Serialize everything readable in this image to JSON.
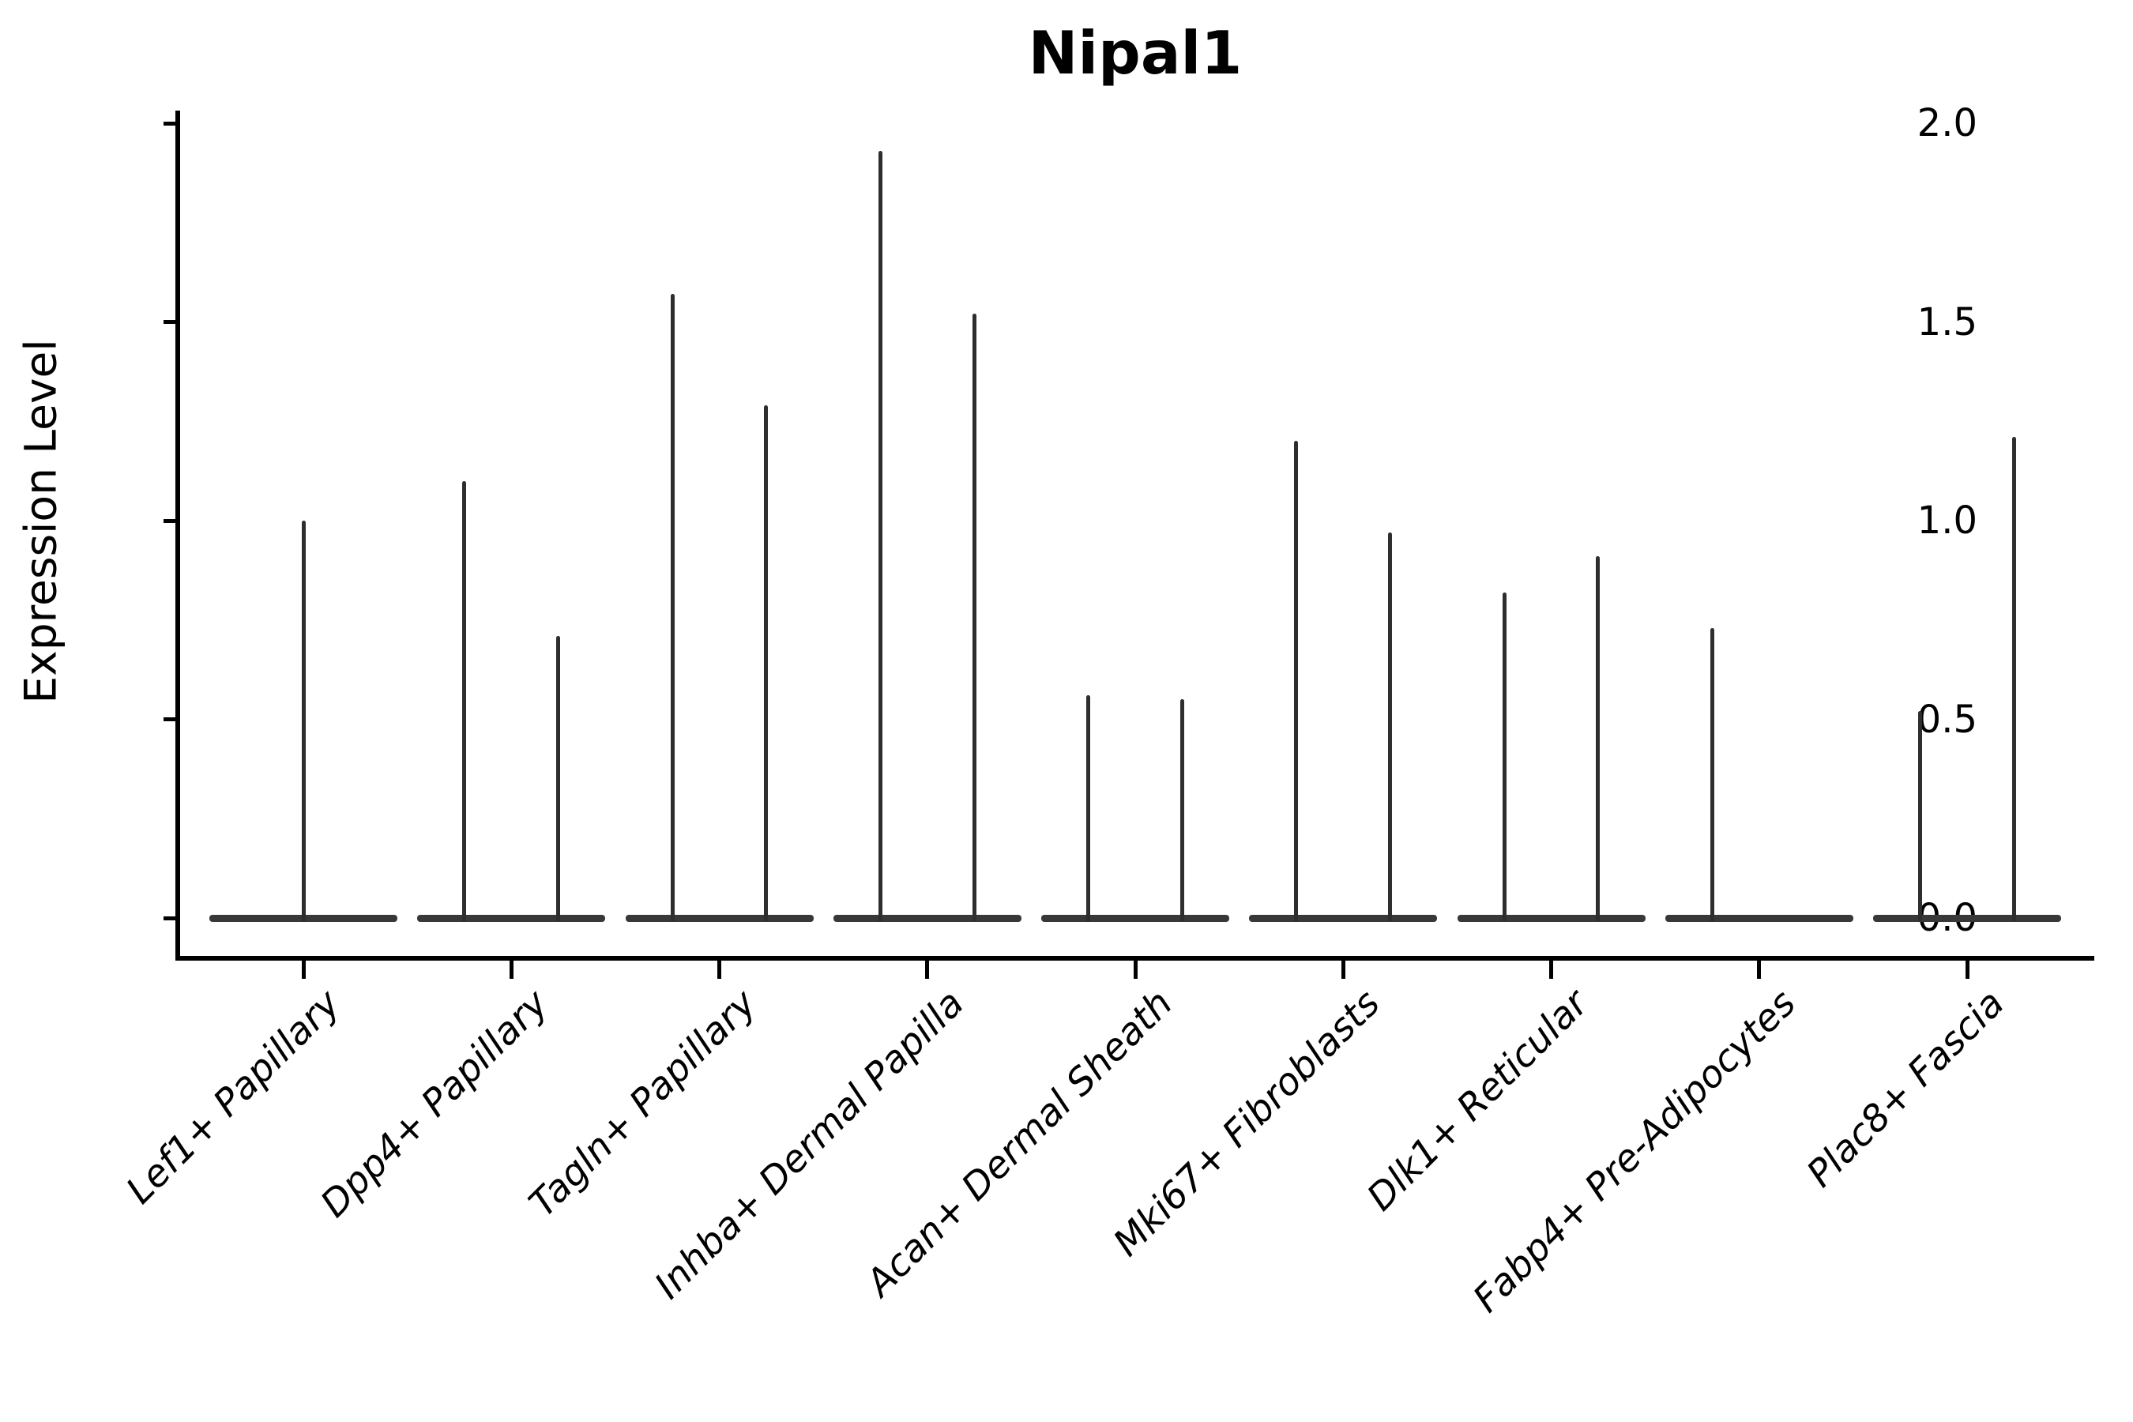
{
  "chart_data": {
    "type": "violin",
    "title": "Nipal1",
    "ylabel": "Expression Level",
    "xlabel": "",
    "ylim": [
      0,
      2.0
    ],
    "yticks": [
      2.0,
      1.5,
      1.0,
      0.5,
      0.0
    ],
    "grid": false,
    "legend": null,
    "style": "sparse single-cell expression violins: wide dark baseline at 0 with thin vertical density spikes up to the max expression value; two side-by-side violins per category unless only one shown",
    "colors": {
      "violin_line": "#2e2e2e",
      "baseline": "#383838",
      "axis": "#000000",
      "text": "#000000",
      "background": "#ffffff"
    },
    "categories": [
      "Lef1+ Papillary",
      "Dpp4+ Papillary",
      "Tagln+ Papillary",
      "Inhba+ Dermal Papilla",
      "Acan+ Dermal Sheath",
      "Mki67+ Fibroblasts",
      "Dlk1+ Reticular",
      "Fabp4+ Pre-Adipocytes",
      "Plac8+ Fascia"
    ],
    "violins": [
      {
        "category": "Lef1+ Papillary",
        "spikes": [
          {
            "slot": "center",
            "max_expression": 1.0
          }
        ]
      },
      {
        "category": "Dpp4+ Papillary",
        "spikes": [
          {
            "slot": "left",
            "max_expression": 1.1
          },
          {
            "slot": "right",
            "max_expression": 0.71
          }
        ]
      },
      {
        "category": "Tagln+ Papillary",
        "spikes": [
          {
            "slot": "left",
            "max_expression": 1.57
          },
          {
            "slot": "right",
            "max_expression": 1.29
          }
        ]
      },
      {
        "category": "Inhba+ Dermal Papilla",
        "spikes": [
          {
            "slot": "left",
            "max_expression": 1.93
          },
          {
            "slot": "right",
            "max_expression": 1.52
          }
        ]
      },
      {
        "category": "Acan+ Dermal Sheath",
        "spikes": [
          {
            "slot": "left",
            "max_expression": 0.56
          },
          {
            "slot": "right",
            "max_expression": 0.55
          }
        ]
      },
      {
        "category": "Mki67+ Fibroblasts",
        "spikes": [
          {
            "slot": "left",
            "max_expression": 1.2
          },
          {
            "slot": "right",
            "max_expression": 0.97
          }
        ]
      },
      {
        "category": "Dlk1+ Reticular",
        "spikes": [
          {
            "slot": "left",
            "max_expression": 0.82
          },
          {
            "slot": "right",
            "max_expression": 0.91
          }
        ]
      },
      {
        "category": "Fabp4+ Pre-Adipocytes",
        "spikes": [
          {
            "slot": "left",
            "max_expression": 0.73
          }
        ]
      },
      {
        "category": "Plac8+ Fascia",
        "spikes": [
          {
            "slot": "left",
            "max_expression": 0.52
          },
          {
            "slot": "right",
            "max_expression": 1.21
          }
        ]
      }
    ]
  }
}
